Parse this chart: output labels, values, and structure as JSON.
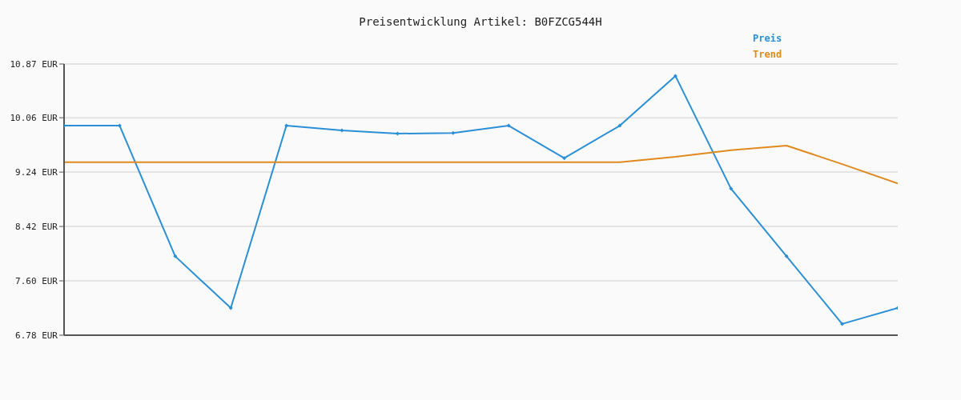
{
  "chart_data": {
    "type": "line",
    "title": "Preisentwicklung Artikel: B0FZCG544H",
    "categories": [
      null,
      null,
      null,
      null,
      null,
      null,
      null,
      null,
      null,
      null,
      null,
      null,
      null,
      null,
      null,
      null
    ],
    "series": [
      {
        "name": "Preis",
        "color": "#2b8fd6",
        "marker": "diamond",
        "values": [
          9.94,
          9.94,
          7.97,
          7.19,
          9.94,
          9.87,
          9.82,
          9.83,
          9.94,
          9.45,
          9.94,
          10.69,
          8.99,
          7.97,
          6.95,
          7.19
        ]
      },
      {
        "name": "Trend",
        "color": "#e0891e",
        "marker": "none",
        "values": [
          9.39,
          9.39,
          9.39,
          9.39,
          9.39,
          9.39,
          9.39,
          9.39,
          9.39,
          9.39,
          9.39,
          9.47,
          9.57,
          9.64,
          9.36,
          9.07
        ]
      }
    ],
    "ylim": [
      6.78,
      10.87
    ],
    "yticks": [
      {
        "value": 6.78,
        "label": "6.78 EUR"
      },
      {
        "value": 7.6,
        "label": "7.60 EUR"
      },
      {
        "value": 8.42,
        "label": "8.42 EUR"
      },
      {
        "value": 9.24,
        "label": "9.24 EUR"
      },
      {
        "value": 10.06,
        "label": "10.06 EUR"
      },
      {
        "value": 10.87,
        "label": "10.87 EUR"
      }
    ],
    "grid": "y",
    "legend": "top right",
    "line_style": "solid"
  }
}
